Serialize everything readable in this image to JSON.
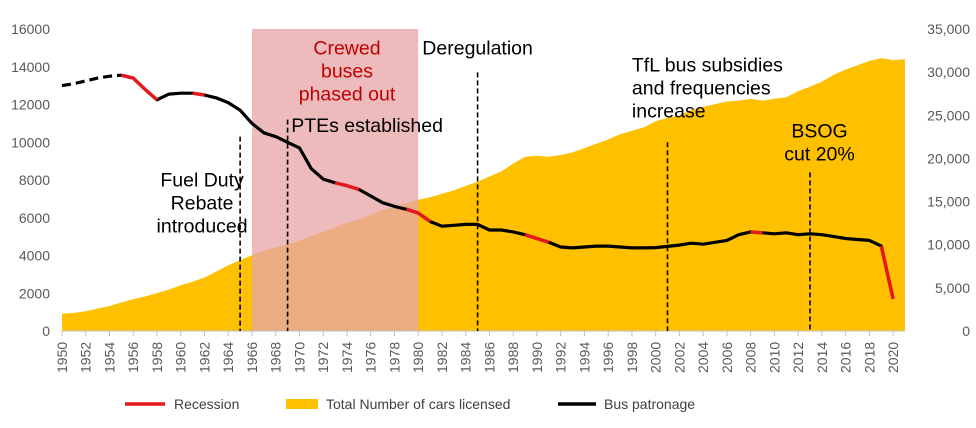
{
  "chart_data": {
    "type": "line",
    "title": "",
    "xlabel": "",
    "ylabel": "",
    "x_range": [
      1950,
      2021
    ],
    "ylim": [
      0,
      16000
    ],
    "y_ticks": [
      0,
      2000,
      4000,
      6000,
      8000,
      10000,
      12000,
      14000,
      16000
    ],
    "y2lim": [
      0,
      35000
    ],
    "y2_ticks": [
      0,
      5000,
      10000,
      15000,
      20000,
      25000,
      30000,
      35000
    ],
    "y_tick_labels": [
      "0",
      "2000",
      "4000",
      "6000",
      "8000",
      "10000",
      "12000",
      "14000",
      "16000"
    ],
    "y2_tick_labels": [
      "0",
      "5,000",
      "10,000",
      "15,000",
      "20,000",
      "25,000",
      "30,000",
      "35,000"
    ],
    "x_ticks": [
      1950,
      1952,
      1954,
      1956,
      1958,
      1960,
      1962,
      1964,
      1966,
      1968,
      1970,
      1972,
      1974,
      1976,
      1978,
      1980,
      1982,
      1984,
      1986,
      1988,
      1990,
      1992,
      1994,
      1996,
      1998,
      2000,
      2002,
      2004,
      2006,
      2008,
      2010,
      2012,
      2014,
      2016,
      2018,
      2020
    ],
    "legend_position": "bottom",
    "grid": false,
    "series": [
      {
        "name": "Total Number of cars licensed",
        "kind": "area",
        "axis": "right",
        "color": "#ffc000",
        "x": [
          1950,
          1951,
          1952,
          1953,
          1954,
          1955,
          1956,
          1957,
          1958,
          1959,
          1960,
          1961,
          1962,
          1963,
          1964,
          1965,
          1966,
          1967,
          1968,
          1969,
          1970,
          1971,
          1972,
          1973,
          1974,
          1975,
          1976,
          1977,
          1978,
          1979,
          1980,
          1981,
          1982,
          1983,
          1984,
          1985,
          1986,
          1987,
          1988,
          1989,
          1990,
          1991,
          1992,
          1993,
          1994,
          1995,
          1996,
          1997,
          1998,
          1999,
          2000,
          2001,
          2002,
          2003,
          2004,
          2005,
          2006,
          2007,
          2008,
          2009,
          2010,
          2011,
          2012,
          2013,
          2014,
          2015,
          2016,
          2017,
          2018,
          2019,
          2020,
          2021
        ],
        "values": [
          2000,
          2100,
          2300,
          2600,
          2900,
          3300,
          3700,
          4000,
          4400,
          4800,
          5300,
          5700,
          6200,
          6900,
          7600,
          8200,
          8800,
          9300,
          9700,
          10000,
          10500,
          11000,
          11500,
          12000,
          12600,
          12900,
          13500,
          14000,
          14400,
          14800,
          15200,
          15500,
          15900,
          16300,
          16800,
          17300,
          17900,
          18500,
          19400,
          20200,
          20300,
          20200,
          20400,
          20700,
          21200,
          21700,
          22200,
          22800,
          23200,
          23600,
          24300,
          24700,
          25000,
          25600,
          26000,
          26300,
          26600,
          26700,
          26900,
          26700,
          26900,
          27100,
          27800,
          28300,
          28900,
          29700,
          30300,
          30800,
          31300,
          31600,
          31400,
          31500
        ]
      },
      {
        "name": "Bus patronage",
        "kind": "line",
        "axis": "left",
        "color": "#000000",
        "x": [
          1950,
          1951,
          1952,
          1953,
          1954,
          1955,
          1956,
          1957,
          1958,
          1959,
          1960,
          1961,
          1962,
          1963,
          1964,
          1965,
          1966,
          1967,
          1968,
          1969,
          1970,
          1971,
          1972,
          1973,
          1974,
          1975,
          1976,
          1977,
          1978,
          1979,
          1980,
          1981,
          1982,
          1983,
          1984,
          1985,
          1986,
          1987,
          1988,
          1989,
          1990,
          1991,
          1992,
          1993,
          1994,
          1995,
          1996,
          1997,
          1998,
          1999,
          2000,
          2001,
          2002,
          2003,
          2004,
          2005,
          2006,
          2007,
          2008,
          2009,
          2010,
          2011,
          2012,
          2013,
          2014,
          2015,
          2016,
          2017,
          2018,
          2019,
          2020
        ],
        "values": [
          13000,
          13100,
          13250,
          13400,
          13500,
          13550,
          13400,
          12800,
          12250,
          12550,
          12600,
          12600,
          12500,
          12350,
          12100,
          11700,
          11000,
          10500,
          10300,
          10000,
          9700,
          8600,
          8050,
          7850,
          7700,
          7500,
          7150,
          6800,
          6600,
          6450,
          6250,
          5800,
          5550,
          5600,
          5650,
          5650,
          5350,
          5350,
          5250,
          5100,
          4900,
          4700,
          4450,
          4400,
          4450,
          4500,
          4500,
          4450,
          4400,
          4400,
          4420,
          4480,
          4550,
          4650,
          4600,
          4700,
          4800,
          5100,
          5250,
          5200,
          5150,
          5200,
          5100,
          5150,
          5100,
          5000,
          4900,
          4850,
          4800,
          4500,
          1700
        ],
        "dashed_segments": [
          [
            1950,
            1955
          ]
        ]
      },
      {
        "name": "Recession",
        "kind": "line-overlay",
        "axis": "left",
        "color": "#e8171b",
        "ranges": [
          [
            1955,
            1958
          ],
          [
            1961,
            1962
          ],
          [
            1973,
            1975
          ],
          [
            1979,
            1981
          ],
          [
            1989,
            1991
          ],
          [
            2008,
            2009
          ],
          [
            2019,
            2020
          ]
        ]
      }
    ],
    "shaded_region": {
      "label": "Crewed buses phased out",
      "from": 1966,
      "to": 1980,
      "color": "#e8a8a8"
    },
    "annotations": [
      {
        "lines": [
          "Crewed",
          "buses",
          "phased out"
        ],
        "style": "red",
        "x": 1974,
        "y": 14650,
        "anchor": "middle"
      },
      {
        "lines": [
          "Deregulation"
        ],
        "x": 1985,
        "y": 14650,
        "anchor": "middle",
        "marker_x": 1985,
        "marker_top": 13700
      },
      {
        "lines": [
          "TfL bus subsidies",
          "and frequencies",
          "increase"
        ],
        "x": 1998,
        "y": 13750,
        "anchor": "start",
        "marker_x": 2001,
        "marker_top": 10000
      },
      {
        "lines": [
          "PTEs established"
        ],
        "x": 1969.3,
        "y": 10550,
        "anchor": "start",
        "marker_x": 1969,
        "marker_top": 11200
      },
      {
        "lines": [
          "Fuel Duty",
          "Rebate",
          "introduced"
        ],
        "x": 1961.8,
        "y": 7650,
        "anchor": "middle",
        "marker_x": 1965,
        "marker_top": 10300
      },
      {
        "lines": [
          "BSOG",
          "cut 20%"
        ],
        "x": 2013.8,
        "y": 10250,
        "anchor": "middle",
        "marker_x": 2013,
        "marker_top": 8400
      }
    ]
  }
}
